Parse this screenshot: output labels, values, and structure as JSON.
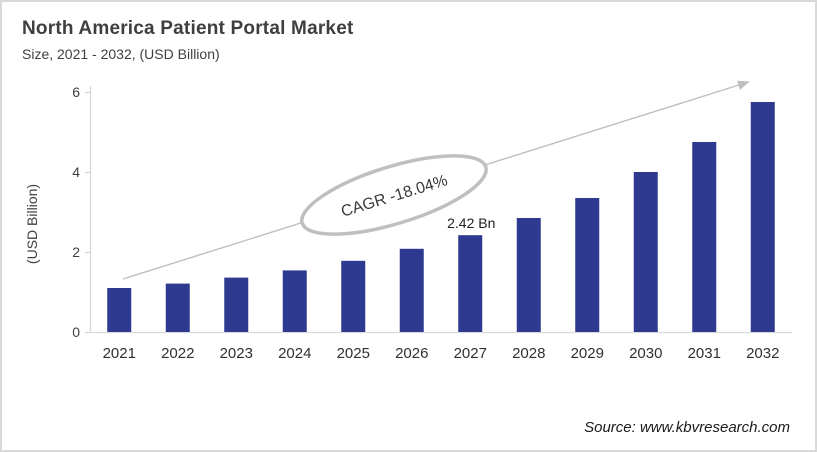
{
  "header": {
    "title": "North America Patient Portal Market",
    "subtitle": "Size, 2021 - 2032, (USD Billion)"
  },
  "footer": {
    "source": "Source: www.kbvresearch.com"
  },
  "chart_data": {
    "type": "bar",
    "title": "North America Patient Portal Market",
    "subtitle": "Size, 2021 - 2032, (USD Billion)",
    "categories": [
      "2021",
      "2022",
      "2023",
      "2024",
      "2025",
      "2026",
      "2027",
      "2028",
      "2029",
      "2030",
      "2031",
      "2032"
    ],
    "values": [
      1.1,
      1.21,
      1.36,
      1.54,
      1.78,
      2.08,
      2.42,
      2.85,
      3.35,
      4.0,
      4.75,
      5.75
    ],
    "xlabel": "",
    "ylabel": "(USD Billion)",
    "ylim": [
      0,
      6
    ],
    "yticks": [
      0,
      2,
      4,
      6
    ],
    "grid": false,
    "legend": false,
    "annotations": {
      "cagr_label": "CAGR -18.04%",
      "value_label": "2.42 Bn",
      "value_label_category": "2027",
      "trend_arrow": true
    },
    "colors": {
      "bar": "#2D3A8F",
      "axis_line": "#D9D9D9",
      "arrow": "#BFBFBF",
      "ellipse_stroke": "#BFBFBF",
      "tick_text": "#404040",
      "category_text": "#303030",
      "value_label_text": "#1F1F1F"
    }
  }
}
